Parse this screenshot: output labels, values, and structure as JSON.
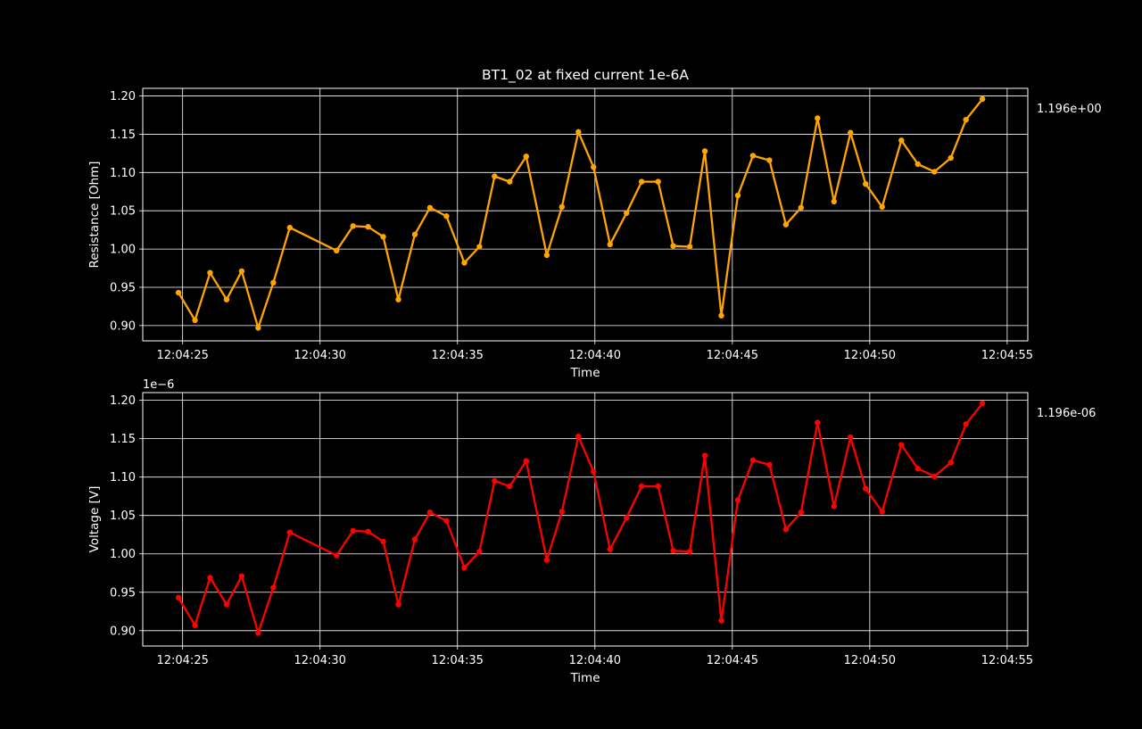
{
  "chart_data": [
    {
      "type": "line",
      "title": "BT1_02 at fixed current 1e-6A",
      "xlabel": "Time",
      "ylabel": "Resistance [Ohm]",
      "ylim": [
        0.88,
        1.21
      ],
      "yticks": [
        "0.90",
        "0.95",
        "1.00",
        "1.05",
        "1.10",
        "1.15",
        "1.20"
      ],
      "xticks": [
        "12:04:25",
        "12:04:30",
        "12:04:35",
        "12:04:40",
        "12:04:45",
        "12:04:50",
        "12:04:55"
      ],
      "offset_text": "",
      "latest_value_label": "1.196e+00",
      "color": "#ffa500",
      "grid": true,
      "series": [
        {
          "x": [
            24.85,
            25.45,
            26.0,
            26.6,
            27.15,
            27.75,
            28.3,
            28.9,
            30.6,
            31.2,
            31.75,
            32.3,
            32.85,
            33.45,
            34.0,
            34.6,
            35.25,
            35.8,
            36.35,
            36.9,
            37.5,
            38.25,
            38.8,
            39.4,
            39.95,
            40.55,
            41.15,
            41.7,
            42.3,
            42.85,
            43.45,
            44.0,
            44.6,
            45.2,
            45.75,
            46.35,
            46.95,
            47.5,
            48.1,
            48.7,
            49.3,
            49.85,
            50.45,
            51.15,
            51.75,
            52.35,
            52.95,
            53.5,
            54.1
          ],
          "y": [
            0.943,
            0.907,
            0.969,
            0.934,
            0.971,
            0.897,
            0.956,
            1.028,
            0.998,
            1.03,
            1.029,
            1.016,
            0.934,
            1.019,
            1.054,
            1.043,
            0.982,
            1.003,
            1.095,
            1.088,
            1.121,
            0.992,
            1.055,
            1.153,
            1.107,
            1.006,
            1.047,
            1.088,
            1.088,
            1.004,
            1.003,
            1.128,
            0.913,
            1.07,
            1.122,
            1.116,
            1.032,
            1.054,
            1.171,
            1.062,
            1.152,
            1.085,
            1.055,
            1.142,
            1.111,
            1.101,
            1.119,
            1.169,
            1.196
          ]
        }
      ]
    },
    {
      "type": "line",
      "title": "",
      "xlabel": "Time",
      "ylabel": "Voltage [V]",
      "ylim": [
        0.88,
        1.21
      ],
      "yticks": [
        "0.90",
        "0.95",
        "1.00",
        "1.05",
        "1.10",
        "1.15",
        "1.20"
      ],
      "xticks": [
        "12:04:25",
        "12:04:30",
        "12:04:35",
        "12:04:40",
        "12:04:45",
        "12:04:50",
        "12:04:55"
      ],
      "offset_text": "1e−6",
      "latest_value_label": "1.196e-06",
      "color": "#ff0000",
      "grid": true,
      "series": [
        {
          "x": [
            24.85,
            25.45,
            26.0,
            26.6,
            27.15,
            27.75,
            28.3,
            28.9,
            30.6,
            31.2,
            31.75,
            32.3,
            32.85,
            33.45,
            34.0,
            34.6,
            35.25,
            35.8,
            36.35,
            36.9,
            37.5,
            38.25,
            38.8,
            39.4,
            39.95,
            40.55,
            41.15,
            41.7,
            42.3,
            42.85,
            43.45,
            44.0,
            44.6,
            45.2,
            45.75,
            46.35,
            46.95,
            47.5,
            48.1,
            48.7,
            49.3,
            49.85,
            50.45,
            51.15,
            51.75,
            52.35,
            52.95,
            53.5,
            54.1
          ],
          "y": [
            0.943,
            0.907,
            0.969,
            0.934,
            0.971,
            0.897,
            0.956,
            1.028,
            0.998,
            1.03,
            1.029,
            1.016,
            0.934,
            1.019,
            1.054,
            1.043,
            0.982,
            1.003,
            1.095,
            1.088,
            1.121,
            0.992,
            1.055,
            1.153,
            1.107,
            1.006,
            1.047,
            1.088,
            1.088,
            1.004,
            1.003,
            1.128,
            0.913,
            1.07,
            1.122,
            1.116,
            1.032,
            1.054,
            1.171,
            1.062,
            1.152,
            1.085,
            1.055,
            1.142,
            1.111,
            1.101,
            1.119,
            1.169,
            1.196
          ]
        }
      ]
    }
  ]
}
